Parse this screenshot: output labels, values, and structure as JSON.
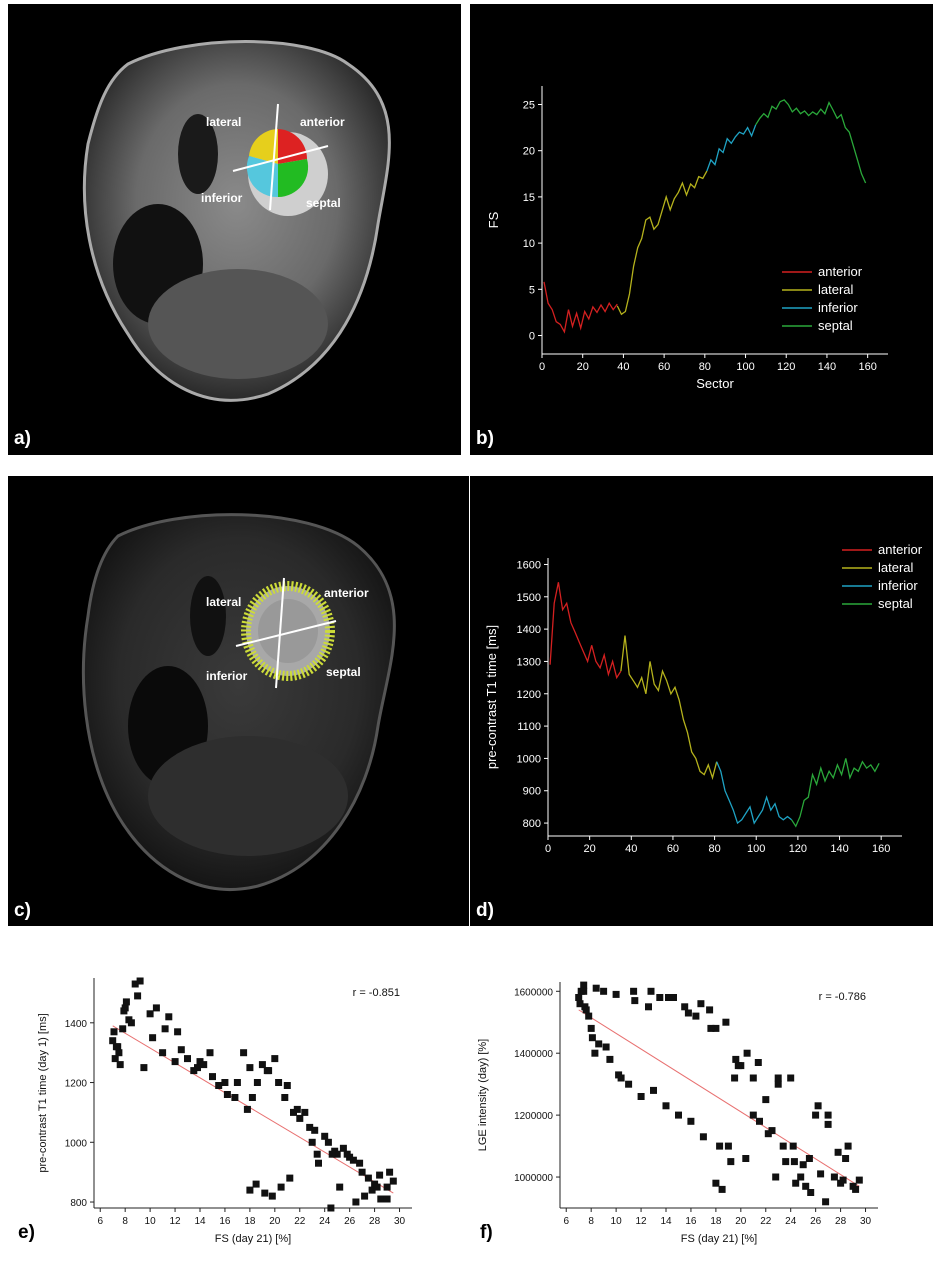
{
  "panels": {
    "a": {
      "label": "a)",
      "regions": {
        "lateral": "lateral",
        "anterior": "anterior",
        "inferior": "inferior",
        "septal": "septal"
      }
    },
    "b": {
      "label": "b)"
    },
    "c": {
      "label": "c)",
      "regions": {
        "lateral": "lateral",
        "anterior": "anterior",
        "inferior": "inferior",
        "septal": "septal"
      }
    },
    "d": {
      "label": "d)"
    },
    "e": {
      "label": "e)"
    },
    "f": {
      "label": "f)"
    }
  },
  "colors": {
    "anterior": "#d42020",
    "lateral": "#b5b21c",
    "inferior": "#1fa3c4",
    "septal": "#2aa83a",
    "fit": "#e87070"
  },
  "chart_data": [
    {
      "id": "b",
      "type": "line",
      "title": "",
      "xlabel": "Sector",
      "ylabel": "FS",
      "xlim": [
        0,
        170
      ],
      "ylim": [
        -2,
        27
      ],
      "xticks": [
        0,
        20,
        40,
        60,
        80,
        100,
        120,
        140,
        160
      ],
      "yticks": [
        0,
        5,
        10,
        15,
        20,
        25
      ],
      "legend": [
        "anterior",
        "lateral",
        "inferior",
        "septal"
      ],
      "legend_position": "bottom-right",
      "series": [
        {
          "name": "anterior",
          "x": [
            1,
            3,
            5,
            7,
            9,
            11,
            13,
            15,
            17,
            19,
            21,
            23,
            25,
            27,
            29,
            31,
            33,
            35,
            37
          ],
          "y": [
            5.8,
            3.5,
            2.8,
            1.5,
            1.2,
            0.4,
            2.8,
            1.0,
            2.4,
            0.8,
            2.6,
            1.8,
            3.1,
            2.5,
            3.3,
            2.6,
            3.5,
            2.8,
            3.4
          ]
        },
        {
          "name": "lateral",
          "x": [
            37,
            39,
            41,
            43,
            45,
            47,
            49,
            51,
            53,
            55,
            57,
            59,
            61,
            63,
            65,
            67,
            69,
            71,
            73,
            75,
            77,
            79,
            81
          ],
          "y": [
            3.2,
            2.3,
            2.6,
            4.5,
            7.5,
            9.5,
            10.5,
            12.5,
            12.8,
            11.5,
            12.0,
            13.5,
            15.0,
            13.6,
            14.8,
            15.5,
            16.5,
            15.2,
            16.4,
            16.0,
            17.2,
            17.0,
            17.8
          ]
        },
        {
          "name": "inferior",
          "x": [
            81,
            83,
            85,
            87,
            89,
            91,
            93,
            95,
            97,
            99,
            101,
            103,
            105
          ],
          "y": [
            17.8,
            19.0,
            18.5,
            20.2,
            19.8,
            21.3,
            20.8,
            21.5,
            22.0,
            21.8,
            22.5,
            21.6,
            22.8
          ]
        },
        {
          "name": "septal",
          "x": [
            105,
            107,
            109,
            111,
            113,
            115,
            117,
            119,
            121,
            123,
            125,
            127,
            129,
            131,
            133,
            135,
            137,
            139,
            141,
            143,
            145,
            147,
            149,
            151,
            153,
            155,
            157,
            159
          ],
          "y": [
            22.8,
            23.5,
            24.0,
            23.6,
            24.8,
            24.5,
            25.3,
            25.5,
            25.0,
            24.2,
            24.6,
            24.0,
            24.3,
            23.8,
            24.2,
            23.9,
            24.5,
            24.0,
            25.2,
            24.4,
            23.5,
            23.9,
            22.5,
            22.0,
            20.5,
            19.0,
            17.5,
            16.5
          ]
        }
      ]
    },
    {
      "id": "d",
      "type": "line",
      "title": "",
      "xlabel": "",
      "ylabel": "pre-contrast T1 time [ms]",
      "xlim": [
        0,
        170
      ],
      "ylim": [
        760,
        1620
      ],
      "xticks": [
        0,
        20,
        40,
        60,
        80,
        100,
        120,
        140,
        160
      ],
      "yticks": [
        800,
        900,
        1000,
        1100,
        1200,
        1300,
        1400,
        1500,
        1600
      ],
      "legend": [
        "anterior",
        "lateral",
        "inferior",
        "septal"
      ],
      "legend_position": "top-right",
      "series": [
        {
          "name": "anterior",
          "x": [
            1,
            3,
            5,
            7,
            9,
            11,
            13,
            15,
            17,
            19,
            21,
            23,
            25,
            27,
            29,
            31,
            33,
            35
          ],
          "y": [
            1290,
            1480,
            1545,
            1460,
            1480,
            1420,
            1390,
            1360,
            1330,
            1300,
            1350,
            1300,
            1280,
            1320,
            1260,
            1300,
            1250,
            1270
          ]
        },
        {
          "name": "lateral",
          "x": [
            35,
            37,
            39,
            41,
            43,
            45,
            47,
            49,
            51,
            53,
            55,
            57,
            59,
            61,
            63,
            65,
            67,
            69,
            71,
            73,
            75,
            77,
            79,
            81
          ],
          "y": [
            1270,
            1380,
            1260,
            1240,
            1220,
            1250,
            1200,
            1300,
            1230,
            1210,
            1270,
            1240,
            1200,
            1220,
            1180,
            1120,
            1080,
            1020,
            1000,
            960,
            950,
            980,
            940,
            990
          ]
        },
        {
          "name": "inferior",
          "x": [
            81,
            83,
            85,
            87,
            89,
            91,
            93,
            95,
            97,
            99,
            101,
            103,
            105,
            107,
            109,
            111,
            113,
            115,
            117
          ],
          "y": [
            990,
            960,
            900,
            870,
            840,
            800,
            810,
            830,
            850,
            800,
            820,
            840,
            880,
            840,
            860,
            820,
            810,
            820,
            810
          ]
        },
        {
          "name": "septal",
          "x": [
            117,
            119,
            121,
            123,
            125,
            127,
            129,
            131,
            133,
            135,
            137,
            139,
            141,
            143,
            145,
            147,
            149,
            151,
            153,
            155,
            157,
            159
          ],
          "y": [
            810,
            790,
            820,
            870,
            880,
            950,
            920,
            970,
            930,
            960,
            940,
            980,
            950,
            1000,
            940,
            970,
            960,
            990,
            970,
            980,
            960,
            985
          ]
        }
      ]
    },
    {
      "id": "e",
      "type": "scatter",
      "title": "",
      "xlabel": "FS (day 21) [%]",
      "ylabel": "pre-contrast T1 time (day 1) [ms]",
      "xlim": [
        5.5,
        31
      ],
      "ylim": [
        780,
        1550
      ],
      "xticks": [
        6,
        8,
        10,
        12,
        14,
        16,
        18,
        20,
        22,
        24,
        26,
        28,
        30
      ],
      "yticks": [
        800,
        1000,
        1200,
        1400
      ],
      "annotation": "r = -0.851",
      "fit": {
        "x": [
          7,
          29.5
        ],
        "y": [
          1390,
          830
        ]
      },
      "points": {
        "x": [
          7,
          7.2,
          7.5,
          7.8,
          8,
          8.3,
          7.1,
          7.4,
          7.6,
          8.1,
          8.5,
          9,
          9.5,
          10,
          10.2,
          11,
          11.5,
          12,
          12.5,
          13,
          13.5,
          14,
          14.3,
          14.8,
          15,
          16,
          16.2,
          16.8,
          17,
          17.5,
          18,
          18.2,
          18.6,
          19,
          19.5,
          20,
          20.3,
          20.8,
          21,
          21.5,
          22,
          22.4,
          22.8,
          23,
          23.4,
          24,
          24.3,
          24.8,
          25,
          25.5,
          26,
          26.3,
          27,
          27.5,
          28,
          28.4,
          29,
          29.5,
          18,
          18.5,
          19.2,
          19.8,
          20.5,
          21.2,
          23.5,
          24.5,
          25.2,
          26.5,
          27.2,
          27.8,
          28.5,
          29.2,
          7.3,
          7.9,
          8.8,
          9.2,
          10.5,
          11.2,
          12.2,
          13.8,
          15.5,
          17.8,
          19.4,
          21.8,
          23.2,
          24.6,
          25.8,
          26.8,
          28.2,
          29
        ],
        "y": [
          1340,
          1280,
          1300,
          1380,
          1450,
          1410,
          1370,
          1320,
          1260,
          1470,
          1400,
          1490,
          1250,
          1430,
          1350,
          1300,
          1420,
          1270,
          1310,
          1280,
          1240,
          1270,
          1260,
          1300,
          1220,
          1200,
          1160,
          1150,
          1200,
          1300,
          1250,
          1150,
          1200,
          1260,
          1240,
          1280,
          1200,
          1150,
          1190,
          1100,
          1080,
          1100,
          1050,
          1000,
          960,
          1020,
          1000,
          970,
          960,
          980,
          950,
          940,
          900,
          880,
          860,
          890,
          850,
          870,
          840,
          860,
          830,
          820,
          850,
          880,
          930,
          780,
          850,
          800,
          820,
          840,
          810,
          900,
          1320,
          1440,
          1530,
          1540,
          1450,
          1380,
          1370,
          1250,
          1190,
          1110,
          1240,
          1110,
          1040,
          960,
          960,
          930,
          850,
          810
        ]
      }
    },
    {
      "id": "f",
      "type": "scatter",
      "title": "",
      "xlabel": "FS (day 21) [%]",
      "ylabel": "LGE intensity (day) [%]",
      "xlim": [
        5.5,
        31
      ],
      "ylim": [
        900000,
        1630000
      ],
      "xticks": [
        6,
        8,
        10,
        12,
        14,
        16,
        18,
        20,
        22,
        24,
        26,
        28,
        30
      ],
      "yticks": [
        1000000,
        1200000,
        1400000,
        1600000
      ],
      "annotation": "r = -0.786",
      "fit": {
        "x": [
          7,
          29.5
        ],
        "y": [
          1540000,
          970000
        ]
      },
      "points": {
        "x": [
          7,
          7.2,
          7.5,
          7.8,
          8,
          8.3,
          7.1,
          7.4,
          7.6,
          8.1,
          8.6,
          9,
          9.5,
          10,
          10.4,
          11,
          11.5,
          12,
          12.6,
          13,
          13.5,
          14,
          14.6,
          15,
          15.5,
          16,
          16.4,
          17,
          17.5,
          18,
          18.3,
          18.8,
          19.2,
          19.6,
          20,
          20.4,
          21,
          21.5,
          22,
          22.5,
          23,
          23.4,
          24,
          24.3,
          24.8,
          25,
          25.5,
          26,
          26.4,
          27,
          27.5,
          28,
          28.4,
          29,
          29.5,
          18,
          18.5,
          19,
          19.5,
          20.5,
          21,
          22.2,
          23,
          23.6,
          24.2,
          25.2,
          26.2,
          27,
          27.8,
          28.6,
          9.2,
          10.2,
          11.4,
          12.8,
          14.2,
          15.8,
          16.8,
          17.6,
          19.8,
          21.4,
          22.8,
          24.4,
          25.6,
          26.8,
          28.2,
          29.2,
          7.4,
          8.4
        ],
        "y": [
          1580000,
          1600000,
          1550000,
          1520000,
          1480000,
          1400000,
          1560000,
          1620000,
          1540000,
          1450000,
          1430000,
          1600000,
          1380000,
          1590000,
          1320000,
          1300000,
          1570000,
          1260000,
          1550000,
          1280000,
          1580000,
          1230000,
          1580000,
          1200000,
          1550000,
          1180000,
          1520000,
          1130000,
          1540000,
          1480000,
          1100000,
          1500000,
          1050000,
          1380000,
          1360000,
          1060000,
          1320000,
          1180000,
          1250000,
          1150000,
          1300000,
          1100000,
          1320000,
          1050000,
          1000000,
          1040000,
          1060000,
          1200000,
          1010000,
          1200000,
          1000000,
          980000,
          1060000,
          970000,
          990000,
          980000,
          960000,
          1100000,
          1320000,
          1400000,
          1200000,
          1140000,
          1320000,
          1050000,
          1100000,
          970000,
          1230000,
          1170000,
          1080000,
          1100000,
          1420000,
          1330000,
          1600000,
          1600000,
          1580000,
          1530000,
          1560000,
          1480000,
          1360000,
          1370000,
          1000000,
          980000,
          950000,
          920000,
          990000,
          960000,
          1600000,
          1610000
        ]
      }
    }
  ]
}
